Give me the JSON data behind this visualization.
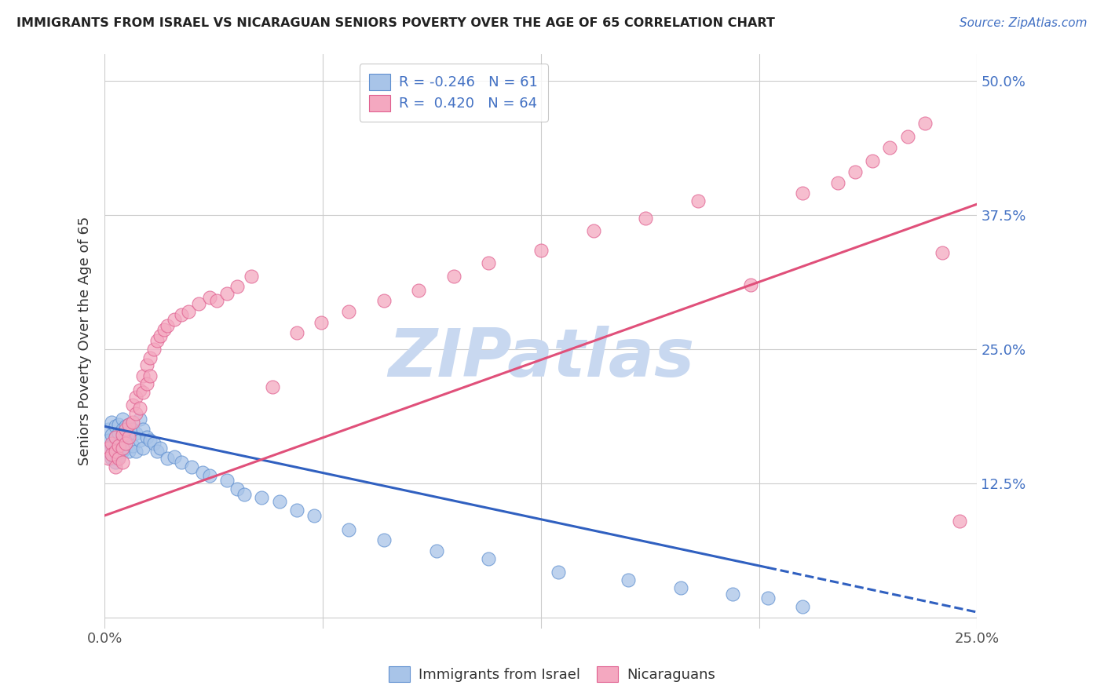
{
  "title": "IMMIGRANTS FROM ISRAEL VS NICARAGUAN SENIORS POVERTY OVER THE AGE OF 65 CORRELATION CHART",
  "source_text": "Source: ZipAtlas.com",
  "ylabel": "Seniors Poverty Over the Age of 65",
  "legend_labels": [
    "Immigrants from Israel",
    "Nicaraguans"
  ],
  "legend_R": [
    -0.246,
    0.42
  ],
  "legend_N": [
    61,
    64
  ],
  "blue_fill": "#a8c4e8",
  "blue_edge": "#6090d0",
  "pink_fill": "#f4a8c0",
  "pink_edge": "#e06090",
  "blue_line_color": "#3060c0",
  "pink_line_color": "#e0507a",
  "watermark_color": "#c8d8f0",
  "xlim": [
    0.0,
    0.25
  ],
  "ylim": [
    -0.01,
    0.525
  ],
  "xticks": [
    0.0,
    0.0625,
    0.125,
    0.1875,
    0.25
  ],
  "xticklabels": [
    "0.0%",
    "",
    "",
    "",
    "25.0%"
  ],
  "yticks": [
    0.0,
    0.125,
    0.25,
    0.375,
    0.5
  ],
  "yticklabels_right": [
    "",
    "12.5%",
    "25.0%",
    "37.5%",
    "50.0%"
  ],
  "grid_color": "#cccccc",
  "background_color": "#ffffff",
  "blue_line_x0": 0.0,
  "blue_line_y0": 0.178,
  "blue_line_x1": 0.25,
  "blue_line_y1": 0.005,
  "blue_line_solid_end": 0.19,
  "pink_line_x0": 0.0,
  "pink_line_y0": 0.095,
  "pink_line_x1": 0.25,
  "pink_line_y1": 0.385,
  "blue_scatter_x": [
    0.001,
    0.001,
    0.001,
    0.002,
    0.002,
    0.002,
    0.002,
    0.003,
    0.003,
    0.003,
    0.003,
    0.004,
    0.004,
    0.004,
    0.004,
    0.005,
    0.005,
    0.005,
    0.005,
    0.006,
    0.006,
    0.006,
    0.007,
    0.007,
    0.007,
    0.008,
    0.008,
    0.009,
    0.009,
    0.01,
    0.01,
    0.011,
    0.011,
    0.012,
    0.013,
    0.014,
    0.015,
    0.016,
    0.018,
    0.02,
    0.022,
    0.025,
    0.028,
    0.03,
    0.035,
    0.038,
    0.04,
    0.045,
    0.05,
    0.055,
    0.06,
    0.07,
    0.08,
    0.095,
    0.11,
    0.13,
    0.15,
    0.165,
    0.18,
    0.19,
    0.2
  ],
  "blue_scatter_y": [
    0.175,
    0.165,
    0.155,
    0.182,
    0.17,
    0.16,
    0.148,
    0.178,
    0.168,
    0.158,
    0.145,
    0.18,
    0.172,
    0.162,
    0.15,
    0.185,
    0.175,
    0.165,
    0.155,
    0.178,
    0.168,
    0.158,
    0.18,
    0.17,
    0.155,
    0.175,
    0.16,
    0.172,
    0.155,
    0.185,
    0.165,
    0.175,
    0.158,
    0.168,
    0.165,
    0.162,
    0.155,
    0.158,
    0.148,
    0.15,
    0.145,
    0.14,
    0.135,
    0.132,
    0.128,
    0.12,
    0.115,
    0.112,
    0.108,
    0.1,
    0.095,
    0.082,
    0.072,
    0.062,
    0.055,
    0.042,
    0.035,
    0.028,
    0.022,
    0.018,
    0.01
  ],
  "pink_scatter_x": [
    0.001,
    0.001,
    0.002,
    0.002,
    0.003,
    0.003,
    0.003,
    0.004,
    0.004,
    0.005,
    0.005,
    0.005,
    0.006,
    0.006,
    0.007,
    0.007,
    0.008,
    0.008,
    0.009,
    0.009,
    0.01,
    0.01,
    0.011,
    0.011,
    0.012,
    0.012,
    0.013,
    0.013,
    0.014,
    0.015,
    0.016,
    0.017,
    0.018,
    0.02,
    0.022,
    0.024,
    0.027,
    0.03,
    0.032,
    0.035,
    0.038,
    0.042,
    0.048,
    0.055,
    0.062,
    0.07,
    0.08,
    0.09,
    0.1,
    0.11,
    0.125,
    0.14,
    0.155,
    0.17,
    0.185,
    0.2,
    0.21,
    0.215,
    0.22,
    0.225,
    0.23,
    0.235,
    0.24,
    0.245
  ],
  "pink_scatter_y": [
    0.158,
    0.148,
    0.162,
    0.152,
    0.168,
    0.155,
    0.14,
    0.16,
    0.148,
    0.17,
    0.158,
    0.145,
    0.175,
    0.162,
    0.18,
    0.168,
    0.198,
    0.182,
    0.205,
    0.19,
    0.212,
    0.195,
    0.225,
    0.21,
    0.235,
    0.218,
    0.242,
    0.225,
    0.25,
    0.258,
    0.262,
    0.268,
    0.272,
    0.278,
    0.282,
    0.285,
    0.292,
    0.298,
    0.295,
    0.302,
    0.308,
    0.318,
    0.215,
    0.265,
    0.275,
    0.285,
    0.295,
    0.305,
    0.318,
    0.33,
    0.342,
    0.36,
    0.372,
    0.388,
    0.31,
    0.395,
    0.405,
    0.415,
    0.425,
    0.438,
    0.448,
    0.46,
    0.34,
    0.09
  ]
}
